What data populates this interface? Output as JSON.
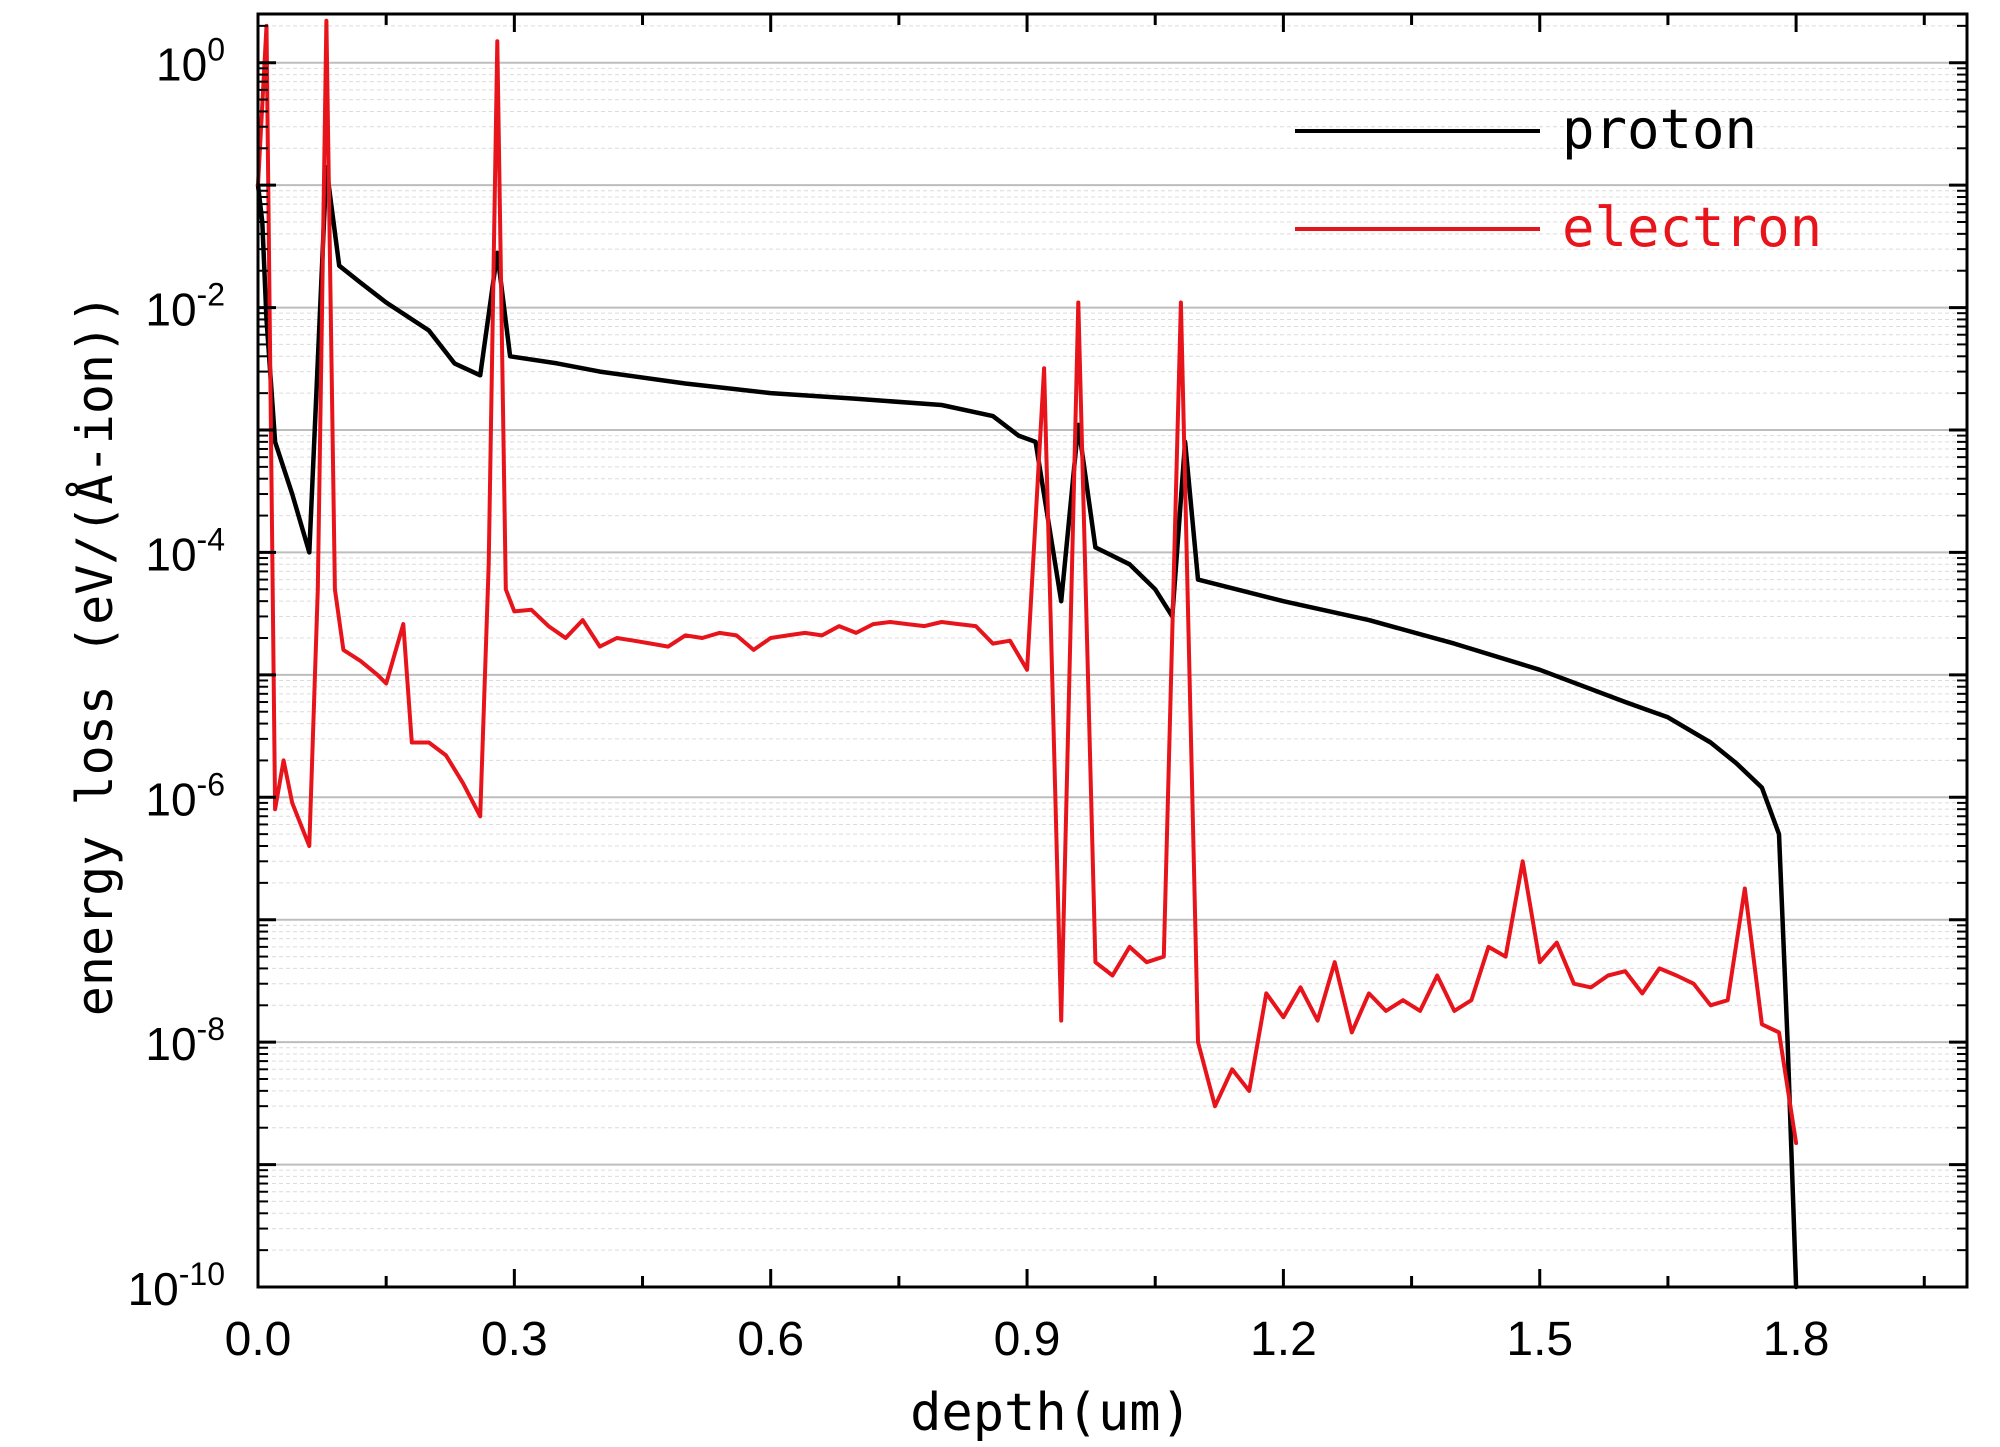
{
  "chart_data": {
    "type": "line",
    "title": "",
    "xlabel": "depth(um)",
    "ylabel": "energy loss (eV/(Å-ion))",
    "xlim": [
      0,
      2.0
    ],
    "ylim": [
      1e-10,
      2.5
    ],
    "yscale": "log",
    "x_ticks": [
      0.0,
      0.3,
      0.6,
      0.9,
      1.2,
      1.5,
      1.8
    ],
    "x_tick_labels": [
      "0.0",
      "0.3",
      "0.6",
      "0.9",
      "1.2",
      "1.5",
      "1.8"
    ],
    "y_tick_exponents": [
      0,
      -2,
      -4,
      -6,
      -8,
      -10
    ],
    "y_tick_base": "10",
    "grid": true,
    "legend_position": "top-right",
    "series": [
      {
        "name": "proton",
        "color": "#000000",
        "x": [
          0.0,
          0.005,
          0.01,
          0.02,
          0.04,
          0.06,
          0.08,
          0.095,
          0.12,
          0.15,
          0.2,
          0.23,
          0.26,
          0.28,
          0.295,
          0.35,
          0.4,
          0.5,
          0.6,
          0.7,
          0.8,
          0.86,
          0.89,
          0.91,
          0.94,
          0.96,
          0.98,
          1.02,
          1.05,
          1.07,
          1.085,
          1.1,
          1.2,
          1.3,
          1.4,
          1.5,
          1.6,
          1.65,
          1.7,
          1.73,
          1.76,
          1.78,
          1.79,
          1.8
        ],
        "y": [
          0.1,
          0.05,
          0.008,
          0.0008,
          0.0003,
          0.0001,
          0.14,
          0.022,
          0.016,
          0.011,
          0.0065,
          0.0035,
          0.0028,
          0.028,
          0.004,
          0.0035,
          0.003,
          0.0024,
          0.002,
          0.0018,
          0.0016,
          0.0013,
          0.0009,
          0.0008,
          4e-05,
          0.0011,
          0.00011,
          8e-05,
          5e-05,
          3e-05,
          0.0008,
          6e-05,
          4e-05,
          2.8e-05,
          1.8e-05,
          1.1e-05,
          6e-06,
          4.5e-06,
          2.8e-06,
          1.9e-06,
          1.2e-06,
          5e-07,
          1e-08,
          1e-10
        ]
      },
      {
        "name": "electron",
        "color": "#e8141c",
        "x": [
          0.0,
          0.01,
          0.02,
          0.03,
          0.04,
          0.05,
          0.06,
          0.07,
          0.08,
          0.09,
          0.1,
          0.12,
          0.14,
          0.15,
          0.17,
          0.18,
          0.2,
          0.22,
          0.24,
          0.26,
          0.27,
          0.28,
          0.29,
          0.3,
          0.32,
          0.34,
          0.36,
          0.38,
          0.4,
          0.42,
          0.44,
          0.46,
          0.48,
          0.5,
          0.52,
          0.54,
          0.56,
          0.58,
          0.6,
          0.62,
          0.64,
          0.66,
          0.68,
          0.7,
          0.72,
          0.74,
          0.76,
          0.78,
          0.8,
          0.82,
          0.84,
          0.86,
          0.88,
          0.9,
          0.92,
          0.94,
          0.96,
          0.98,
          1.0,
          1.02,
          1.04,
          1.06,
          1.08,
          1.1,
          1.12,
          1.14,
          1.16,
          1.18,
          1.2,
          1.22,
          1.24,
          1.26,
          1.28,
          1.3,
          1.32,
          1.34,
          1.36,
          1.38,
          1.4,
          1.42,
          1.44,
          1.46,
          1.48,
          1.5,
          1.52,
          1.54,
          1.56,
          1.58,
          1.6,
          1.62,
          1.64,
          1.66,
          1.68,
          1.7,
          1.72,
          1.74,
          1.76,
          1.78,
          1.8
        ],
        "y": [
          0.1,
          2.0,
          8e-07,
          2e-06,
          9e-07,
          6e-07,
          4e-07,
          5e-05,
          2.2,
          5e-05,
          1.6e-05,
          1.3e-05,
          1e-05,
          8.5e-06,
          2.6e-05,
          2.8e-06,
          2.8e-06,
          2.2e-06,
          1.3e-06,
          7e-07,
          8e-05,
          1.5,
          5e-05,
          3.3e-05,
          3.4e-05,
          2.5e-05,
          2e-05,
          2.8e-05,
          1.7e-05,
          2e-05,
          1.9e-05,
          1.8e-05,
          1.7e-05,
          2.1e-05,
          2e-05,
          2.2e-05,
          2.1e-05,
          1.6e-05,
          2e-05,
          2.1e-05,
          2.2e-05,
          2.1e-05,
          2.5e-05,
          2.2e-05,
          2.6e-05,
          2.7e-05,
          2.6e-05,
          2.5e-05,
          2.7e-05,
          2.6e-05,
          2.5e-05,
          1.8e-05,
          1.9e-05,
          1.1e-05,
          0.0032,
          1.5e-08,
          0.011,
          4.5e-08,
          3.5e-08,
          6e-08,
          4.5e-08,
          5e-08,
          0.011,
          1e-08,
          3e-09,
          6e-09,
          4e-09,
          2.5e-08,
          1.6e-08,
          2.8e-08,
          1.5e-08,
          4.5e-08,
          1.2e-08,
          2.5e-08,
          1.8e-08,
          2.2e-08,
          1.8e-08,
          3.5e-08,
          1.8e-08,
          2.2e-08,
          6e-08,
          5e-08,
          3e-07,
          4.5e-08,
          6.5e-08,
          3e-08,
          2.8e-08,
          3.5e-08,
          3.8e-08,
          2.5e-08,
          4e-08,
          3.5e-08,
          3e-08,
          2e-08,
          2.2e-08,
          1.8e-07,
          1.4e-08,
          1.2e-08,
          1.5e-09
        ]
      }
    ]
  }
}
